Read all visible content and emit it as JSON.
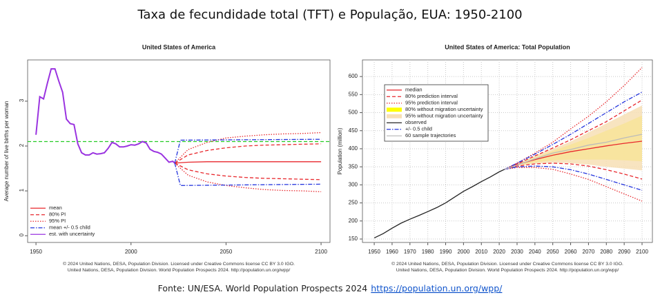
{
  "title": "Taxa de fecundidade total (TFT) e População, EUA: 1950-2100",
  "source": {
    "text": "Fonte: UN/ESA. World Population Prospects 2024",
    "link": "https://population.un.org/wpp/"
  },
  "chart_data": [
    {
      "type": "line",
      "title": "United States of America",
      "y_label": "Average number of live births per woman",
      "xlim": [
        1945.6,
        2104.7
      ],
      "ylim": [
        -0.15,
        3.92
      ],
      "xticks": [
        1950,
        2000,
        2050,
        2100
      ],
      "yticks": [
        0,
        1,
        2,
        3
      ],
      "grid": false,
      "legend": "bottom-left",
      "legend_border": false,
      "reference_line": {
        "value": 2.1,
        "color": "#22cc22"
      },
      "series": [
        {
          "name": "mean",
          "color": "#e8262b",
          "dash": "solid",
          "kind": "line",
          "x": [
            2023,
            2030,
            2040,
            2050,
            2060,
            2070,
            2080,
            2090,
            2100
          ],
          "values": [
            1.62,
            1.64,
            1.65,
            1.65,
            1.65,
            1.65,
            1.65,
            1.65,
            1.65
          ]
        },
        {
          "name": "80% PI",
          "color": "#e8262b",
          "dash": "dashed",
          "kind": "pair",
          "x": [
            2023,
            2030,
            2040,
            2050,
            2060,
            2070,
            2080,
            2090,
            2100
          ],
          "values": [
            1.62,
            1.8,
            1.9,
            1.96,
            2.0,
            2.02,
            2.03,
            2.04,
            2.05
          ],
          "lower": [
            1.62,
            1.47,
            1.38,
            1.33,
            1.3,
            1.28,
            1.27,
            1.26,
            1.25
          ]
        },
        {
          "name": "95% PI",
          "color": "#e8262b",
          "dash": "dotted",
          "kind": "pair",
          "x": [
            2023,
            2030,
            2040,
            2050,
            2060,
            2070,
            2080,
            2090,
            2100
          ],
          "values": [
            1.62,
            1.92,
            2.08,
            2.18,
            2.22,
            2.25,
            2.27,
            2.28,
            2.3
          ],
          "lower": [
            1.62,
            1.35,
            1.2,
            1.12,
            1.07,
            1.03,
            1.01,
            1.0,
            0.98
          ]
        },
        {
          "name": "mean +/- 0.5 child",
          "color": "#2233dd",
          "dash": "dashdot",
          "kind": "pair",
          "x": [
            2023,
            2026,
            2100
          ],
          "values": [
            1.62,
            2.13,
            2.15
          ],
          "lower": [
            1.62,
            1.12,
            1.15
          ]
        },
        {
          "name": "est. with uncertainty",
          "color": "#9a33e0",
          "dash": "solid",
          "kind": "line",
          "x": [
            1950,
            1952,
            1954,
            1956,
            1958,
            1960,
            1962,
            1964,
            1966,
            1968,
            1970,
            1972,
            1974,
            1976,
            1978,
            1980,
            1982,
            1984,
            1986,
            1988,
            1990,
            1992,
            1994,
            1996,
            1998,
            2000,
            2002,
            2004,
            2006,
            2008,
            2010,
            2012,
            2014,
            2016,
            2018,
            2020,
            2022,
            2023
          ],
          "values": [
            2.25,
            3.1,
            3.05,
            3.4,
            3.72,
            3.72,
            3.45,
            3.2,
            2.6,
            2.5,
            2.48,
            2.05,
            1.85,
            1.8,
            1.8,
            1.85,
            1.82,
            1.83,
            1.85,
            1.95,
            2.08,
            2.05,
            1.98,
            1.98,
            2.0,
            2.03,
            2.02,
            2.05,
            2.1,
            2.07,
            1.93,
            1.88,
            1.86,
            1.82,
            1.73,
            1.64,
            1.66,
            1.62
          ]
        }
      ],
      "footer": [
        "© 2024 United Nations, DESA, Population Division. Licensed under Creative Commons license CC BY 3.0 IGO.",
        "United Nations, DESA, Population Division. World Population Prospects 2024. http://population.un.org/wpp/"
      ]
    },
    {
      "type": "line",
      "title": "United States of America: Total Population",
      "y_label": "Population (million)",
      "xlim": [
        1943.4,
        2105.8
      ],
      "ylim": [
        140.5,
        646
      ],
      "xticks": [
        1950,
        1960,
        1970,
        1980,
        1990,
        2000,
        2010,
        2020,
        2030,
        2040,
        2050,
        2060,
        2070,
        2080,
        2090,
        2100
      ],
      "yticks": [
        150,
        200,
        250,
        300,
        350,
        400,
        450,
        500,
        550,
        600
      ],
      "grid": true,
      "legend": "top-left",
      "legend_border": true,
      "series": [
        {
          "name": "median",
          "color": "#e8262b",
          "dash": "solid",
          "kind": "line",
          "x": [
            2023,
            2030,
            2040,
            2050,
            2060,
            2070,
            2080,
            2090,
            2100
          ],
          "values": [
            343,
            356,
            370,
            382,
            392,
            400,
            408,
            415,
            421
          ]
        },
        {
          "name": "80% prediction interval",
          "color": "#e8262b",
          "dash": "dashed",
          "kind": "pair",
          "x": [
            2023,
            2030,
            2040,
            2050,
            2060,
            2070,
            2080,
            2090,
            2100
          ],
          "values": [
            343,
            358,
            380,
            402,
            425,
            450,
            475,
            505,
            535
          ],
          "lower": [
            343,
            352,
            358,
            360,
            358,
            352,
            342,
            330,
            316
          ]
        },
        {
          "name": "95% prediction interval",
          "color": "#e8262b",
          "dash": "dotted",
          "kind": "pair",
          "x": [
            2023,
            2030,
            2040,
            2050,
            2060,
            2070,
            2080,
            2090,
            2100
          ],
          "values": [
            343,
            360,
            388,
            418,
            455,
            490,
            530,
            575,
            625
          ],
          "lower": [
            343,
            348,
            348,
            343,
            330,
            315,
            295,
            275,
            255
          ]
        },
        {
          "name": "80% without migration uncertainty",
          "color": "#ffff00",
          "kind": "band",
          "x": [
            2023,
            2030,
            2040,
            2050,
            2060,
            2070,
            2080,
            2090,
            2100
          ],
          "values": [
            343,
            357,
            376,
            394,
            412,
            430,
            450,
            470,
            492
          ],
          "lower": [
            343,
            354,
            362,
            368,
            370,
            370,
            370,
            368,
            365
          ]
        },
        {
          "name": "95% without migration uncertainty",
          "color": "#f7dfb5",
          "kind": "band",
          "x": [
            2023,
            2030,
            2040,
            2050,
            2060,
            2070,
            2080,
            2090,
            2100
          ],
          "values": [
            343,
            358,
            380,
            400,
            420,
            445,
            470,
            495,
            520
          ],
          "lower": [
            343,
            352,
            358,
            362,
            360,
            356,
            350,
            345,
            340
          ]
        },
        {
          "name": "observed",
          "color": "#222222",
          "dash": "solid",
          "kind": "line",
          "x": [
            1950,
            1955,
            1960,
            1965,
            1970,
            1975,
            1980,
            1985,
            1990,
            1995,
            2000,
            2005,
            2010,
            2015,
            2020,
            2023
          ],
          "values": [
            153,
            165,
            180,
            194,
            205,
            215,
            226,
            237,
            250,
            266,
            282,
            295,
            309,
            322,
            336,
            343
          ]
        },
        {
          "name": "+/- 0.5 child",
          "color": "#2233dd",
          "dash": "dashdot",
          "kind": "pair",
          "x": [
            2023,
            2030,
            2040,
            2050,
            2060,
            2070,
            2080,
            2090,
            2100
          ],
          "values": [
            343,
            360,
            385,
            412,
            440,
            470,
            500,
            530,
            557
          ],
          "lower": [
            343,
            350,
            352,
            350,
            342,
            330,
            315,
            300,
            285
          ]
        },
        {
          "name": "60 sample trajectories",
          "color": "#bbbbbb",
          "dash": "solid",
          "kind": "line",
          "x": [
            2023,
            2030,
            2040,
            2050,
            2060,
            2070,
            2080,
            2090,
            2100
          ],
          "values": [
            343,
            355,
            372,
            388,
            398,
            410,
            418,
            430,
            440
          ]
        }
      ],
      "footer": [
        "© 2024 United Nations, DESA, Population Division. Licensed under Creative Commons license CC BY 3.0 IGO.",
        "United Nations, DESA, Population Division. World Population Prospects 2024. http://population.un.org/wpp/"
      ]
    }
  ]
}
